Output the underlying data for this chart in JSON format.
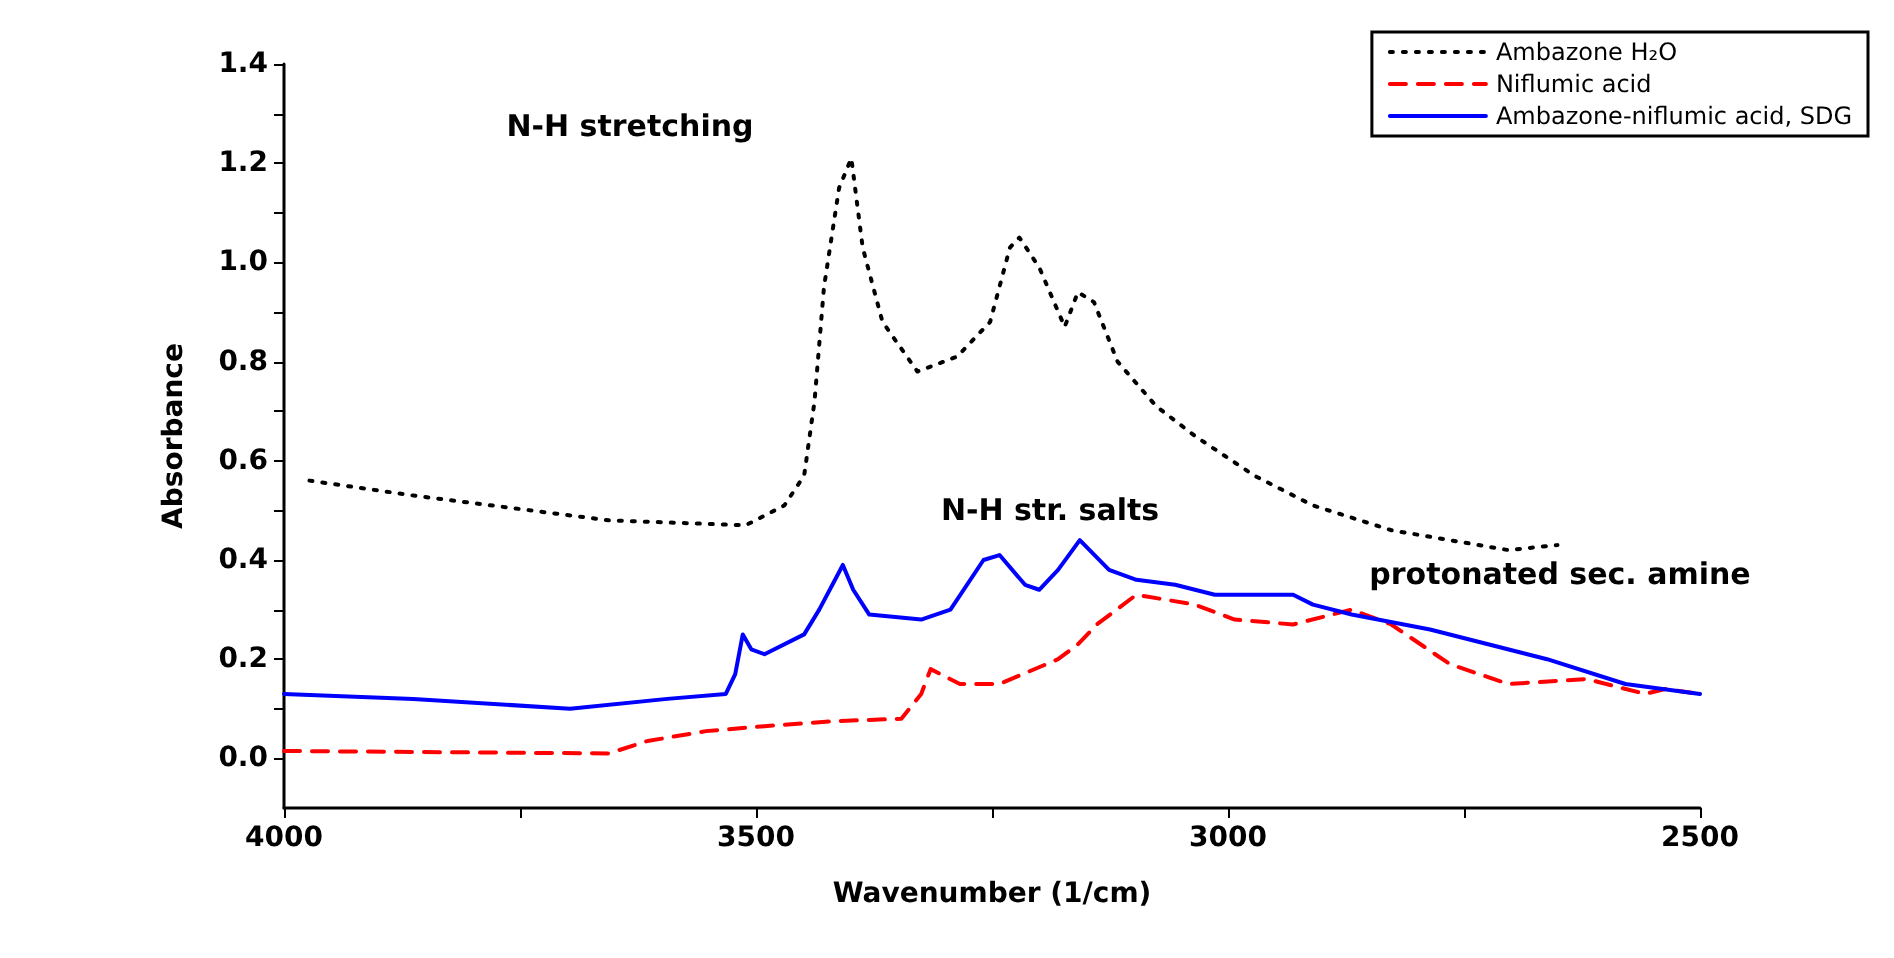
{
  "chart_data": {
    "type": "line",
    "xlabel": "Wavenumber (1/cm)",
    "ylabel": "Absorbance",
    "xlim": [
      4000,
      2500
    ],
    "ylim": [
      -0.1,
      1.4
    ],
    "xticks": [
      4000,
      {
        "value": 3750,
        "label": null
      },
      3500,
      {
        "value": 3250,
        "label": null
      },
      3000,
      {
        "value": 2750,
        "label": null
      },
      2500
    ],
    "yticks": [
      {
        "value": 0,
        "label": "0.0"
      },
      {
        "value": 0.1,
        "label": null
      },
      {
        "value": 0.2,
        "label": "0.2"
      },
      {
        "value": 0.3,
        "label": null
      },
      {
        "value": 0.4,
        "label": "0.4"
      },
      {
        "value": 0.5,
        "label": null
      },
      {
        "value": 0.6,
        "label": "0.6"
      },
      {
        "value": 0.7,
        "label": null
      },
      {
        "value": 0.8,
        "label": "0.8"
      },
      {
        "value": 0.9,
        "label": null
      },
      {
        "value": 1.0,
        "label": "1.0"
      },
      {
        "value": 1.1,
        "label": null
      },
      {
        "value": 1.2,
        "label": "1.2"
      },
      {
        "value": 1.3,
        "label": null
      },
      {
        "value": 1.4,
        "label": "1.4"
      }
    ],
    "grid": false,
    "legend": "top right",
    "marker": "none",
    "series": [
      {
        "name": "Ambazone H₂O",
        "color": "#000000",
        "line_style": "dotted",
        "x": [
          3973,
          3863,
          3656,
          3511,
          3470,
          3449,
          3438,
          3428,
          3412,
          3399,
          3387,
          3366,
          3329,
          3287,
          3252,
          3231,
          3221,
          3200,
          3173,
          3159,
          3142,
          3117,
          3076,
          3035,
          2972,
          2910,
          2827,
          2703,
          2651
        ],
        "values": [
          0.56,
          0.53,
          0.48,
          0.47,
          0.51,
          0.57,
          0.72,
          0.95,
          1.15,
          1.21,
          1.03,
          0.88,
          0.78,
          0.81,
          0.88,
          1.03,
          1.05,
          0.99,
          0.87,
          0.94,
          0.92,
          0.8,
          0.71,
          0.65,
          0.57,
          0.51,
          0.46,
          0.42,
          0.43
        ]
      },
      {
        "name": "Niflumic acid",
        "color": "#ff0000",
        "line_style": "dashed",
        "x": [
          4000,
          3656,
          3615,
          3553,
          3491,
          3418,
          3346,
          3325,
          3315,
          3284,
          3242,
          3180,
          3159,
          3139,
          3097,
          3035,
          2993,
          2931,
          2869,
          2827,
          2765,
          2703,
          2620,
          2558,
          2537,
          2500
        ],
        "values": [
          0.015,
          0.01,
          0.035,
          0.055,
          0.065,
          0.075,
          0.08,
          0.13,
          0.18,
          0.15,
          0.15,
          0.2,
          0.23,
          0.27,
          0.33,
          0.31,
          0.28,
          0.27,
          0.3,
          0.27,
          0.19,
          0.15,
          0.16,
          0.13,
          0.14,
          0.13
        ]
      },
      {
        "name": "Ambazone-niflumic acid, SDG",
        "color": "#0000ff",
        "line_style": "solid",
        "x": [
          4000,
          3863,
          3697,
          3594,
          3532,
          3522,
          3514,
          3505,
          3491,
          3449,
          3433,
          3408,
          3397,
          3380,
          3325,
          3294,
          3259,
          3242,
          3215,
          3200,
          3180,
          3157,
          3126,
          3097,
          3056,
          3014,
          2931,
          2910,
          2869,
          2786,
          2662,
          2579,
          2500
        ],
        "values": [
          0.13,
          0.12,
          0.1,
          0.12,
          0.13,
          0.17,
          0.25,
          0.22,
          0.21,
          0.25,
          0.3,
          0.39,
          0.34,
          0.29,
          0.28,
          0.3,
          0.4,
          0.41,
          0.35,
          0.34,
          0.38,
          0.44,
          0.38,
          0.36,
          0.35,
          0.33,
          0.33,
          0.31,
          0.29,
          0.26,
          0.2,
          0.15,
          0.13
        ]
      }
    ],
    "annotations": [
      "N-H stretching",
      "N-H str. salts",
      "protonated sec. amine"
    ]
  }
}
